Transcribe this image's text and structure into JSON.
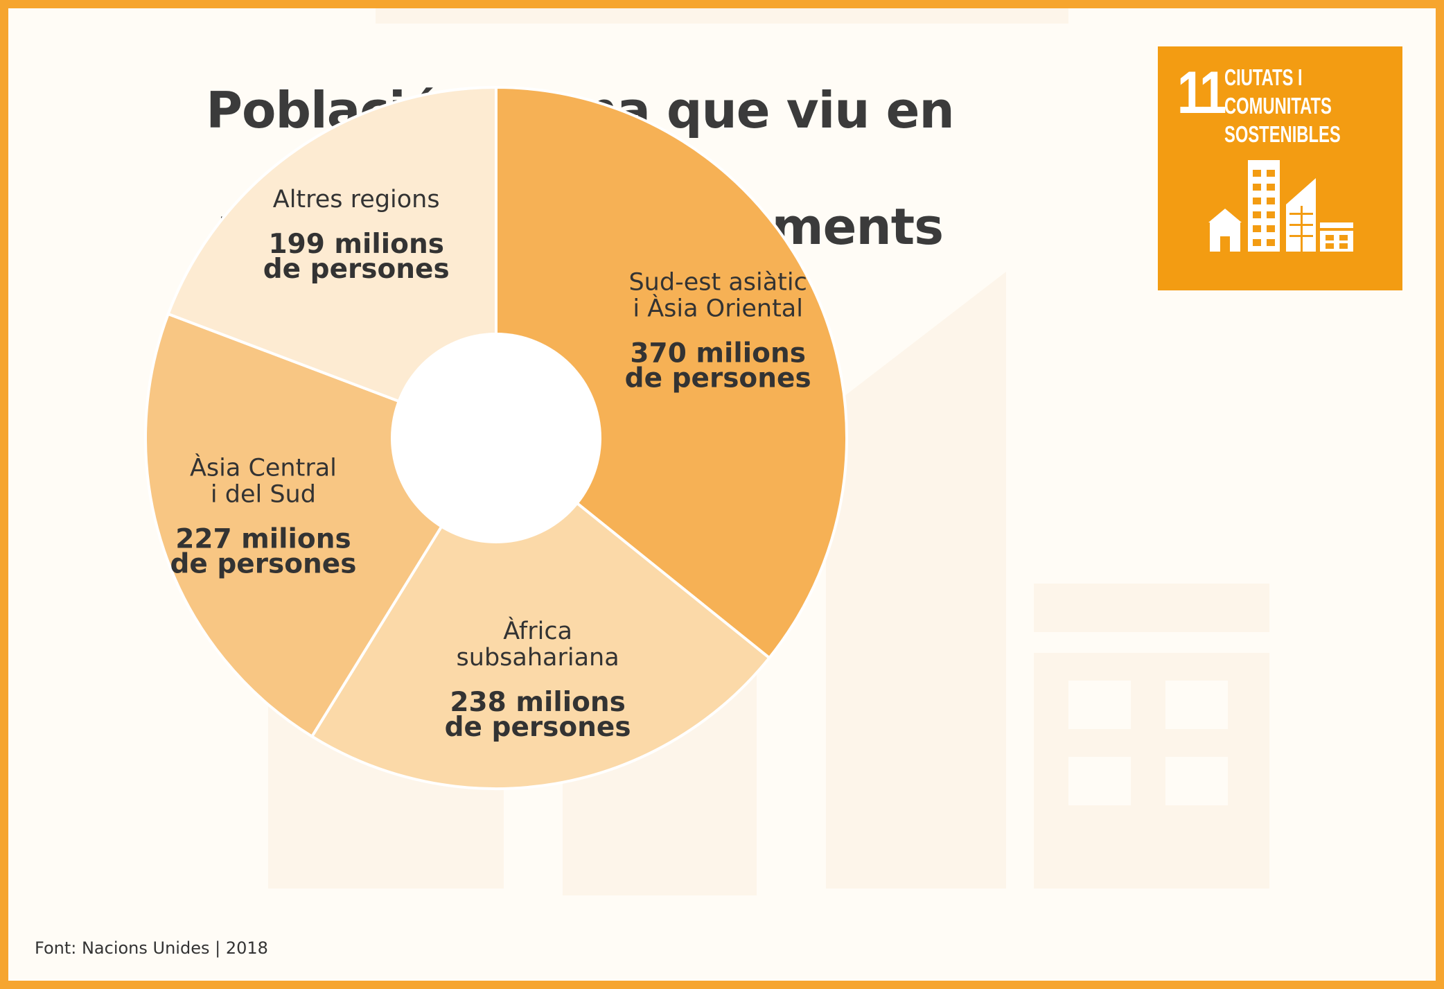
{
  "title_lines": [
    "Població urbana que viu en barris",
    "marginals o assentaments"
  ],
  "badge": {
    "number": "11",
    "lines": [
      "CIUTATS I",
      "COMUNITATS",
      "SOSTENIBLES"
    ],
    "icon": "city-buildings-icon",
    "color": "#f39c12"
  },
  "source": "Font: Nacions Unides | 2018",
  "chart_data": {
    "type": "pie",
    "donut": true,
    "unit": "milions de persones",
    "title": "Població urbana que viu en barris marginals o assentaments",
    "slices": [
      {
        "label_lines": [
          "Sud-est asiàtic",
          "i Àsia Oriental"
        ],
        "value": 370,
        "value_lines": [
          "370 milions",
          "de persones"
        ],
        "color": "#f6b155"
      },
      {
        "label_lines": [
          "Àfrica",
          "subsahariana"
        ],
        "value": 238,
        "value_lines": [
          "238 milions",
          "de persones"
        ],
        "color": "#fbd9a8"
      },
      {
        "label_lines": [
          "Àsia Central",
          "i del Sud"
        ],
        "value": 227,
        "value_lines": [
          "227 milions",
          "de persones"
        ],
        "color": "#f8c683"
      },
      {
        "label_lines": [
          "Altres regions"
        ],
        "value": 199,
        "value_lines": [
          "199 milions",
          "de persones"
        ],
        "color": "#fdebd2"
      }
    ]
  }
}
